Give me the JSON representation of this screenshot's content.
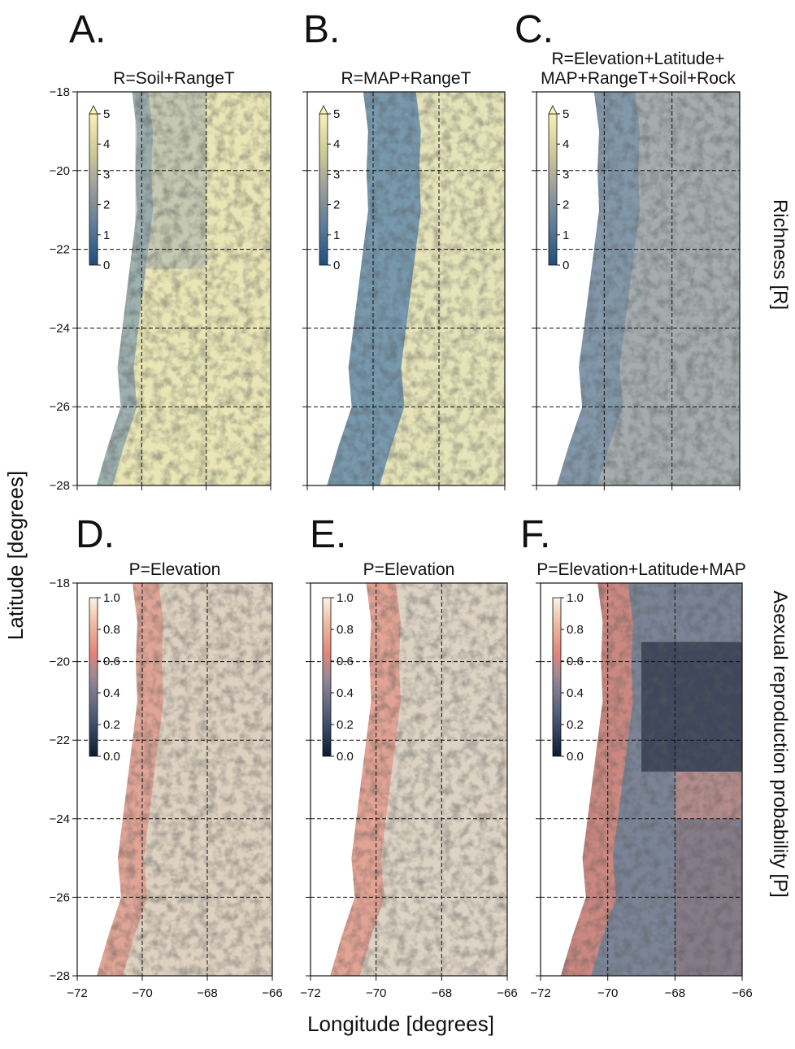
{
  "panels": [
    {
      "letter": "A.",
      "title": [
        "R=Soil+RangeT"
      ],
      "colorbar": {
        "lim": [
          0,
          5
        ],
        "ticks": [
          0,
          1,
          2,
          3,
          4,
          5
        ]
      }
    },
    {
      "letter": "B.",
      "title": [
        "R=MAP+RangeT"
      ],
      "colorbar": {
        "lim": [
          0,
          5
        ],
        "ticks": [
          0,
          1,
          2,
          3,
          4,
          5
        ]
      }
    },
    {
      "letter": "C.",
      "title": [
        "R=Elevation+Latitude+",
        "MAP+RangeT+Soil+Rock"
      ],
      "colorbar": {
        "lim": [
          0,
          5
        ],
        "ticks": [
          0,
          1,
          2,
          3,
          4,
          5
        ]
      }
    },
    {
      "letter": "D.",
      "title": [
        "P=Elevation"
      ],
      "colorbar": {
        "lim": [
          0,
          1
        ],
        "ticks": [
          {
            "value": 0,
            "label": "0.0"
          },
          0.2,
          0.4,
          0.6,
          0.8,
          {
            "value": 1,
            "label": "1.0"
          }
        ]
      }
    },
    {
      "letter": "E.",
      "title": [
        "P=Elevation"
      ],
      "colorbar": {
        "lim": [
          0,
          1
        ],
        "ticks": [
          {
            "value": 0,
            "label": "0.0"
          },
          0.2,
          0.4,
          0.6,
          0.8,
          {
            "value": 1,
            "label": "1.0"
          }
        ]
      }
    },
    {
      "letter": "F.",
      "title": [
        "P=Elevation+Latitude+MAP"
      ],
      "colorbar": {
        "lim": [
          0,
          1
        ],
        "ticks": [
          {
            "value": 0,
            "label": "0.0"
          },
          0.2,
          0.4,
          0.6,
          0.8,
          {
            "value": 1,
            "label": "1.0"
          }
        ]
      }
    }
  ],
  "xlim": [
    -72,
    -66
  ],
  "ylim": [
    -28,
    -18
  ],
  "xticks": [
    {
      "value": -72,
      "label": "−72"
    },
    {
      "value": -70,
      "label": "−70"
    },
    {
      "value": -68,
      "label": "−68"
    },
    {
      "value": -66,
      "label": "−66"
    }
  ],
  "yticks": [
    {
      "value": -18,
      "label": "−18"
    },
    {
      "value": -20,
      "label": "−20"
    },
    {
      "value": -22,
      "label": "−22"
    },
    {
      "value": -24,
      "label": "−24"
    },
    {
      "value": -26,
      "label": "−26"
    },
    {
      "value": -28,
      "label": "−28"
    }
  ],
  "xlabel": "Longitude [degrees]",
  "ylabel": "Latitude [degrees]",
  "row_labels": [
    "Richness [R]",
    "Asexual reproduction probability [P]"
  ]
}
